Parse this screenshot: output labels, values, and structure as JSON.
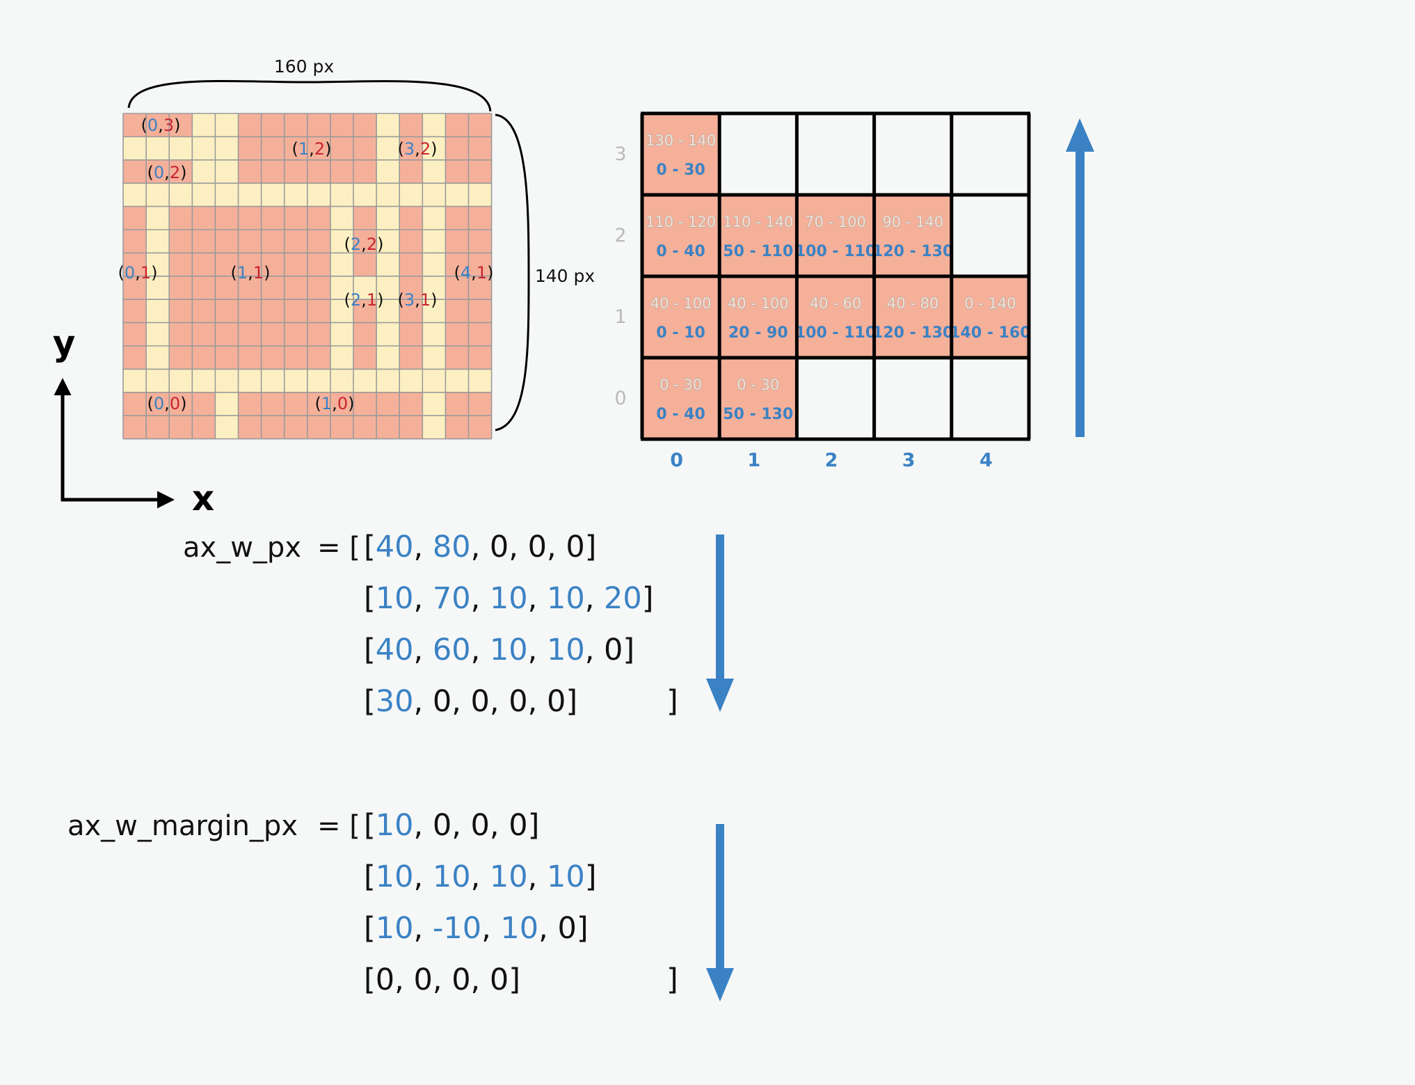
{
  "canvas": {
    "bg": "#f6f8f8"
  },
  "colors": {
    "blue": "#3b82c4",
    "red": "#c8242f",
    "salmon": "#f5b09a",
    "cream": "#fcf0c2",
    "grid": "#9a9a9a",
    "gray": "#b9b9b9",
    "black": "#111111"
  },
  "pixel_grid": {
    "cols": 16,
    "rows": 14,
    "width_label": "160 px",
    "height_label": "140 px",
    "cells": [
      "SSSSSSSSSSSSSSSS",
      "SSSSSSSSSSSSSSSS",
      "SSSSSSSSSSSSSSSS",
      "SSSSSSSSSSSSSSSS",
      "SSSSSSSSSSSSSSSS",
      "SSSSSSSSSSSSSSSS",
      "SSSSSSSSSSSSSSSS",
      "SSSSSSSSSSSSSSSS",
      "SSSSSSSSSSSSSSSS",
      "SSSSSSSSSSSSSSSS",
      "SSSSSSSSSSSSSSSS",
      "SSSSSSSSSSSSSSSS",
      "SSSSSSSSSSSSSSSS",
      "SSSSSSSSSSSSSSSS"
    ],
    "cream_segments": [
      "r0:3-4,11,13",
      "r1:0-4,11,13",
      "r2:3-4,11,13",
      "r3:0-15",
      "r4:1,9,11,13",
      "r5:1,9,11,13",
      "r6:1,9,11,13",
      "r7:1,9,10,11,13",
      "r8:1,9,11,13",
      "r9:1,9,11,13",
      "r10:1,9,11,13",
      "r11:0-15",
      "r12:4,13",
      "r13:4,13"
    ],
    "labels": [
      {
        "open": "(",
        "x": "0",
        "sep": ",",
        "y": "3",
        "close": ")"
      },
      {
        "open": "(",
        "x": "1",
        "sep": ",",
        "y": "2",
        "close": ")"
      },
      {
        "open": "(",
        "x": "3",
        "sep": ",",
        "y": "2",
        "close": ")"
      },
      {
        "open": "(",
        "x": "0",
        "sep": ",",
        "y": "2",
        "close": ")"
      },
      {
        "open": "(",
        "x": "2",
        "sep": ",",
        "y": "2",
        "close": ")"
      },
      {
        "open": "(",
        "x": "0",
        "sep": ",",
        "y": "1",
        "close": ")"
      },
      {
        "open": "(",
        "x": "1",
        "sep": ",",
        "y": "1",
        "close": ")"
      },
      {
        "open": "(",
        "x": "4",
        "sep": ",",
        "y": "1",
        "close": ")"
      },
      {
        "open": "(",
        "x": "2",
        "sep": ",",
        "y": "1",
        "close": ")"
      },
      {
        "open": "(",
        "x": "3",
        "sep": ",",
        "y": "1",
        "close": ")"
      },
      {
        "open": "(",
        "x": "0",
        "sep": ",",
        "y": "0",
        "close": ")"
      },
      {
        "open": "(",
        "x": "1",
        "sep": ",",
        "y": "0",
        "close": ")"
      }
    ]
  },
  "axes": {
    "x_label": "x",
    "y_label": "y"
  },
  "layout_grid": {
    "row_labels": [
      "3",
      "2",
      "1",
      "0"
    ],
    "col_labels": [
      "0",
      "1",
      "2",
      "3",
      "4"
    ],
    "cells": [
      [
        {
          "top": "130 - 140",
          "bottom": "0 - 30"
        },
        null,
        null,
        null,
        null
      ],
      [
        {
          "top": "110 - 120",
          "bottom": "0 - 40"
        },
        {
          "top": "110 - 140",
          "bottom": "50 - 110"
        },
        {
          "top": "70 - 100",
          "bottom": "100 - 110"
        },
        {
          "top": "90 - 140",
          "bottom": "120 - 130"
        },
        null
      ],
      [
        {
          "top": "40 - 100",
          "bottom": "0 - 10"
        },
        {
          "top": "40 - 100",
          "bottom": "20 - 90"
        },
        {
          "top": "40 - 60",
          "bottom": "100 - 110"
        },
        {
          "top": "40 - 80",
          "bottom": "120 - 130"
        },
        {
          "top": "0 - 140",
          "bottom": "140 - 160"
        }
      ],
      [
        {
          "top": "0 - 30",
          "bottom": "0 - 40"
        },
        {
          "top": "0 - 30",
          "bottom": "50 - 130"
        },
        null,
        null,
        null
      ]
    ]
  },
  "arrays": [
    {
      "name": "ax_w_px",
      "equals": "= [",
      "closing": "]",
      "rows": [
        [
          {
            "v": "40",
            "c": "blue"
          },
          {
            "v": "80",
            "c": "blue"
          },
          {
            "v": "0",
            "c": "black"
          },
          {
            "v": "0",
            "c": "black"
          },
          {
            "v": "0",
            "c": "black"
          }
        ],
        [
          {
            "v": "10",
            "c": "blue"
          },
          {
            "v": "70",
            "c": "blue"
          },
          {
            "v": "10",
            "c": "blue"
          },
          {
            "v": "10",
            "c": "blue"
          },
          {
            "v": "20",
            "c": "blue"
          }
        ],
        [
          {
            "v": "40",
            "c": "blue"
          },
          {
            "v": "60",
            "c": "blue"
          },
          {
            "v": "10",
            "c": "blue"
          },
          {
            "v": "10",
            "c": "blue"
          },
          {
            "v": "0",
            "c": "black"
          }
        ],
        [
          {
            "v": "30",
            "c": "blue"
          },
          {
            "v": "0",
            "c": "black"
          },
          {
            "v": "0",
            "c": "black"
          },
          {
            "v": "0",
            "c": "black"
          },
          {
            "v": "0",
            "c": "black"
          }
        ]
      ]
    },
    {
      "name": "ax_w_margin_px",
      "equals": "= [",
      "closing": "]",
      "rows": [
        [
          {
            "v": "10",
            "c": "blue"
          },
          {
            "v": "0",
            "c": "black"
          },
          {
            "v": "0",
            "c": "black"
          },
          {
            "v": "0",
            "c": "black"
          }
        ],
        [
          {
            "v": "10",
            "c": "blue"
          },
          {
            "v": "10",
            "c": "blue"
          },
          {
            "v": "10",
            "c": "blue"
          },
          {
            "v": "10",
            "c": "blue"
          }
        ],
        [
          {
            "v": "10",
            "c": "blue"
          },
          {
            "v": "-10",
            "c": "blue"
          },
          {
            "v": "10",
            "c": "blue"
          },
          {
            "v": "0",
            "c": "black"
          }
        ],
        [
          {
            "v": "0",
            "c": "black"
          },
          {
            "v": "0",
            "c": "black"
          },
          {
            "v": "0",
            "c": "black"
          },
          {
            "v": "0",
            "c": "black"
          }
        ]
      ]
    }
  ]
}
